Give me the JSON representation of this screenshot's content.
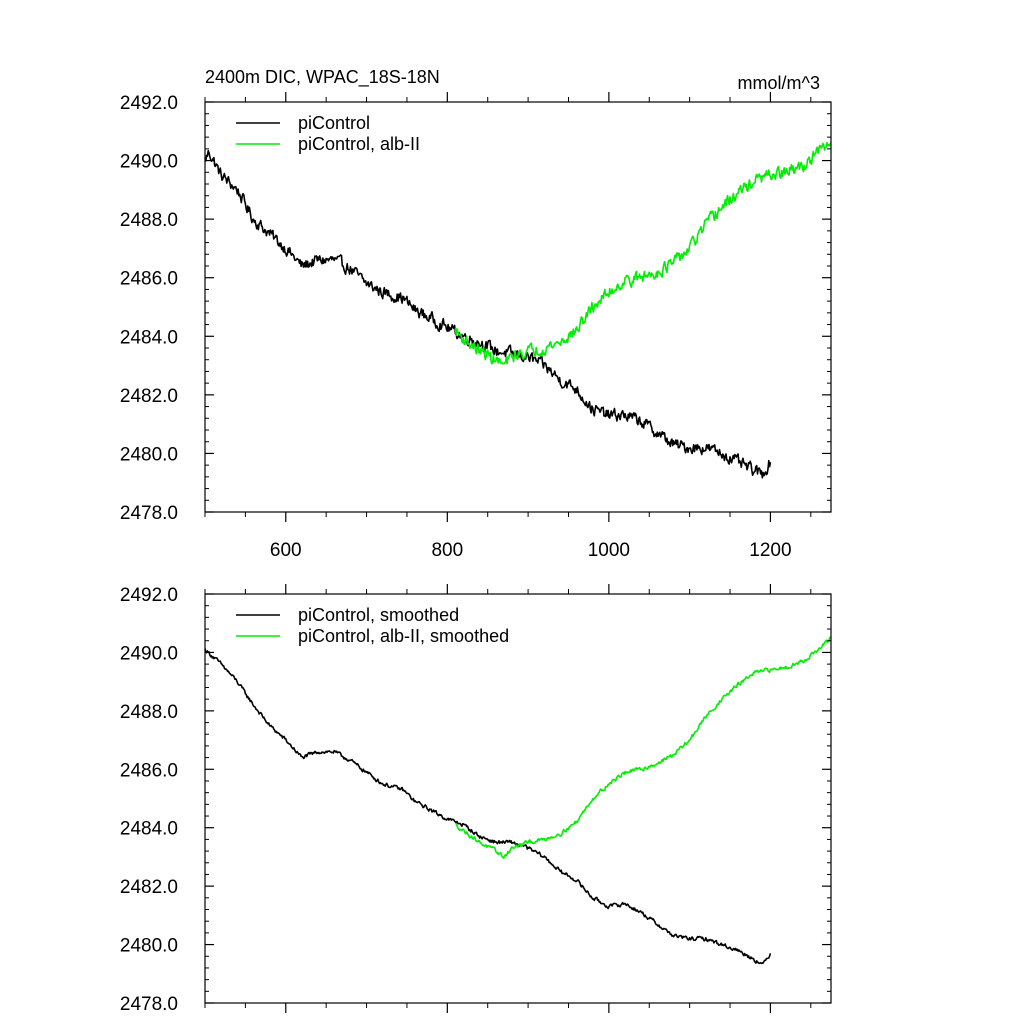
{
  "header": {
    "title": "2400m DIC, WPAC_18S-18N",
    "units": "mmol/m^3"
  },
  "colors": {
    "piControl": "#000000",
    "alb": "#00ee00"
  },
  "chart_data": [
    {
      "type": "line",
      "title": "2400m DIC, WPAC_18S-18N",
      "units": "mmol/m^3",
      "xlim": [
        500,
        1275
      ],
      "ylim": [
        2478,
        2492
      ],
      "x_ticks": [
        600,
        800,
        1000,
        1200
      ],
      "x_tick_labels": [
        "600",
        "800",
        "1000",
        "1200"
      ],
      "y_ticks": [
        2478,
        2480,
        2482,
        2484,
        2486,
        2488,
        2490,
        2492
      ],
      "y_tick_labels": [
        "2478.0",
        "2480.0",
        "2482.0",
        "2484.0",
        "2486.0",
        "2488.0",
        "2490.0",
        "2492.0"
      ],
      "grid": false,
      "legend_position": "top-left",
      "series": [
        {
          "name": "piControl",
          "color": "#000000",
          "noise": 0.18,
          "points": [
            [
              500,
              2490.0
            ],
            [
              505,
              2490.3
            ],
            [
              520,
              2489.5
            ],
            [
              540,
              2489.0
            ],
            [
              560,
              2488.0
            ],
            [
              580,
              2487.5
            ],
            [
              600,
              2487.0
            ],
            [
              620,
              2486.4
            ],
            [
              640,
              2486.6
            ],
            [
              660,
              2486.6
            ],
            [
              680,
              2486.3
            ],
            [
              700,
              2485.8
            ],
            [
              720,
              2485.5
            ],
            [
              745,
              2485.3
            ],
            [
              760,
              2484.9
            ],
            [
              780,
              2484.6
            ],
            [
              800,
              2484.3
            ],
            [
              820,
              2484.0
            ],
            [
              840,
              2483.8
            ],
            [
              860,
              2483.5
            ],
            [
              880,
              2483.4
            ],
            [
              900,
              2483.3
            ],
            [
              920,
              2483.0
            ],
            [
              940,
              2482.5
            ],
            [
              960,
              2482.2
            ],
            [
              980,
              2481.5
            ],
            [
              1000,
              2481.3
            ],
            [
              1020,
              2481.3
            ],
            [
              1040,
              2481.1
            ],
            [
              1060,
              2480.7
            ],
            [
              1080,
              2480.3
            ],
            [
              1100,
              2480.2
            ],
            [
              1120,
              2480.2
            ],
            [
              1140,
              2480.0
            ],
            [
              1160,
              2479.7
            ],
            [
              1180,
              2479.4
            ],
            [
              1190,
              2479.3
            ],
            [
              1200,
              2479.7
            ]
          ]
        },
        {
          "name": "piControl, alb-II",
          "color": "#00ee00",
          "noise": 0.18,
          "points": [
            [
              810,
              2484.2
            ],
            [
              820,
              2483.9
            ],
            [
              840,
              2483.5
            ],
            [
              860,
              2483.2
            ],
            [
              870,
              2483.0
            ],
            [
              880,
              2483.3
            ],
            [
              900,
              2483.5
            ],
            [
              920,
              2483.6
            ],
            [
              940,
              2483.8
            ],
            [
              960,
              2484.2
            ],
            [
              980,
              2485.0
            ],
            [
              1000,
              2485.5
            ],
            [
              1020,
              2485.9
            ],
            [
              1040,
              2486.0
            ],
            [
              1060,
              2486.2
            ],
            [
              1080,
              2486.5
            ],
            [
              1100,
              2487.0
            ],
            [
              1120,
              2487.8
            ],
            [
              1140,
              2488.4
            ],
            [
              1160,
              2488.9
            ],
            [
              1180,
              2489.3
            ],
            [
              1200,
              2489.5
            ],
            [
              1220,
              2489.6
            ],
            [
              1240,
              2489.8
            ],
            [
              1260,
              2490.3
            ],
            [
              1275,
              2490.6
            ]
          ]
        }
      ]
    },
    {
      "type": "line",
      "xlim": [
        500,
        1275
      ],
      "ylim": [
        2478,
        2492
      ],
      "x_ticks": [
        600,
        800,
        1000,
        1200
      ],
      "x_tick_labels": [],
      "y_ticks": [
        2478,
        2480,
        2482,
        2484,
        2486,
        2488,
        2490,
        2492
      ],
      "y_tick_labels": [
        "2478.0",
        "2480.0",
        "2482.0",
        "2484.0",
        "2486.0",
        "2488.0",
        "2490.0",
        "2492.0"
      ],
      "grid": false,
      "legend_position": "top-left",
      "series": [
        {
          "name": "piControl, smoothed",
          "color": "#000000",
          "noise": 0.06,
          "points": [
            [
              500,
              2490.1
            ],
            [
              520,
              2489.6
            ],
            [
              540,
              2489.0
            ],
            [
              560,
              2488.2
            ],
            [
              580,
              2487.5
            ],
            [
              600,
              2487.0
            ],
            [
              620,
              2486.4
            ],
            [
              640,
              2486.6
            ],
            [
              660,
              2486.6
            ],
            [
              680,
              2486.3
            ],
            [
              700,
              2485.9
            ],
            [
              720,
              2485.5
            ],
            [
              745,
              2485.3
            ],
            [
              760,
              2484.9
            ],
            [
              780,
              2484.6
            ],
            [
              800,
              2484.3
            ],
            [
              820,
              2484.1
            ],
            [
              840,
              2483.7
            ],
            [
              860,
              2483.5
            ],
            [
              880,
              2483.5
            ],
            [
              900,
              2483.3
            ],
            [
              920,
              2483.0
            ],
            [
              940,
              2482.5
            ],
            [
              960,
              2482.2
            ],
            [
              980,
              2481.6
            ],
            [
              1000,
              2481.3
            ],
            [
              1020,
              2481.4
            ],
            [
              1040,
              2481.1
            ],
            [
              1060,
              2480.7
            ],
            [
              1080,
              2480.3
            ],
            [
              1100,
              2480.2
            ],
            [
              1120,
              2480.2
            ],
            [
              1140,
              2480.0
            ],
            [
              1160,
              2479.8
            ],
            [
              1180,
              2479.5
            ],
            [
              1190,
              2479.3
            ],
            [
              1200,
              2479.7
            ]
          ]
        },
        {
          "name": "piControl, alb-II, smoothed",
          "color": "#00ee00",
          "noise": 0.06,
          "points": [
            [
              810,
              2484.1
            ],
            [
              820,
              2483.9
            ],
            [
              840,
              2483.5
            ],
            [
              860,
              2483.2
            ],
            [
              870,
              2483.0
            ],
            [
              880,
              2483.3
            ],
            [
              900,
              2483.5
            ],
            [
              920,
              2483.6
            ],
            [
              940,
              2483.8
            ],
            [
              960,
              2484.2
            ],
            [
              980,
              2485.0
            ],
            [
              1000,
              2485.5
            ],
            [
              1020,
              2485.9
            ],
            [
              1040,
              2486.0
            ],
            [
              1060,
              2486.2
            ],
            [
              1080,
              2486.5
            ],
            [
              1100,
              2487.0
            ],
            [
              1120,
              2487.8
            ],
            [
              1140,
              2488.4
            ],
            [
              1160,
              2488.9
            ],
            [
              1180,
              2489.3
            ],
            [
              1200,
              2489.4
            ],
            [
              1220,
              2489.5
            ],
            [
              1240,
              2489.7
            ],
            [
              1260,
              2490.1
            ],
            [
              1275,
              2490.5
            ]
          ]
        }
      ]
    }
  ]
}
